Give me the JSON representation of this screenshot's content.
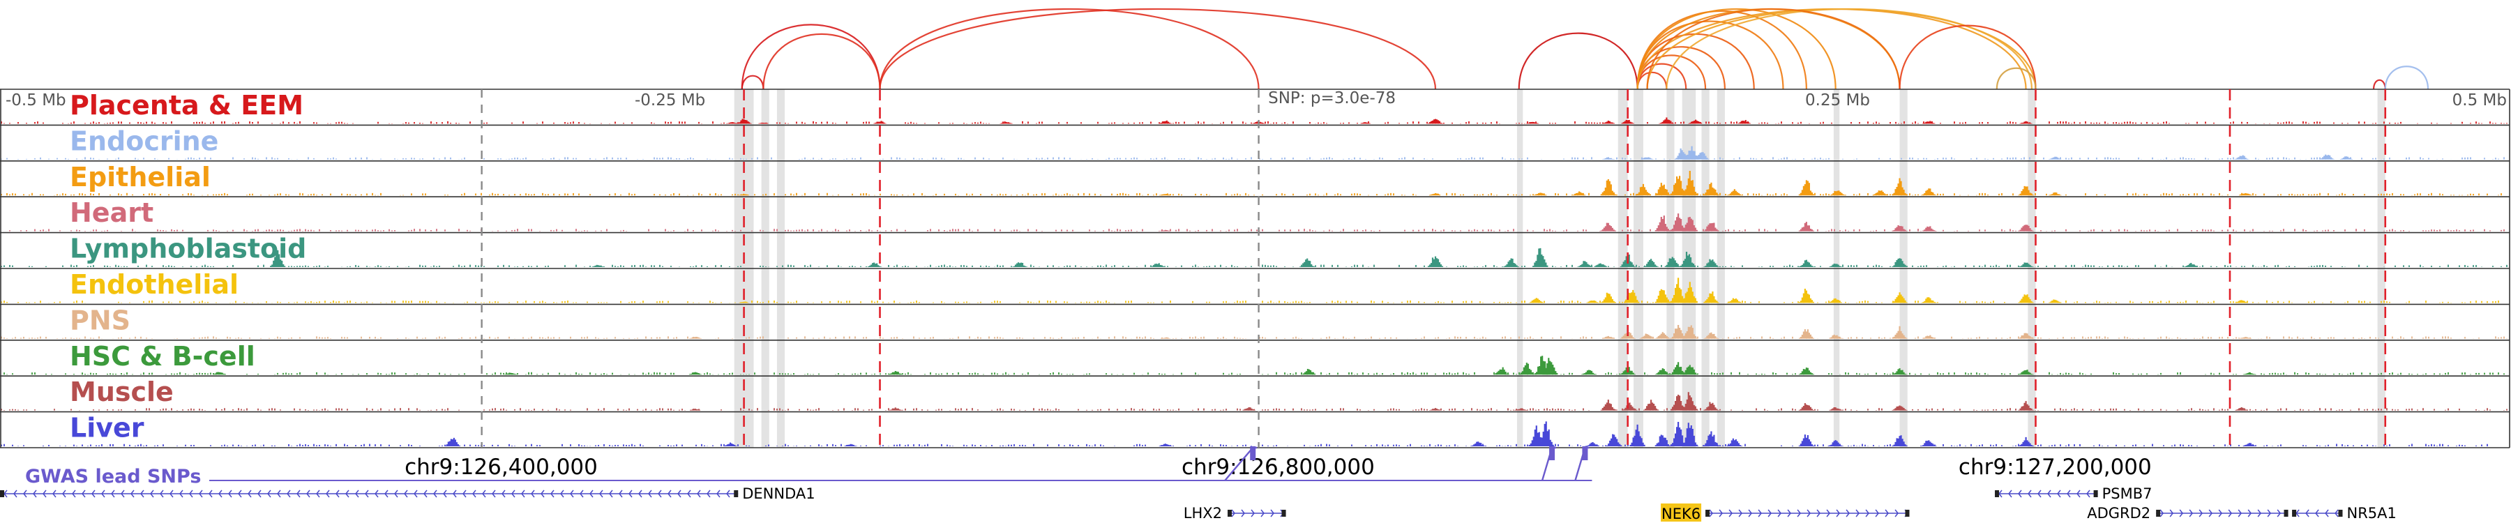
{
  "chart_data": {
    "type": "genome-browser",
    "region": {
      "chrom": "chr9",
      "start": 126142000,
      "end": 127434000,
      "center": 126792000,
      "scale_labels": [
        "-0.5 Mb",
        "-0.25 Mb",
        "0.25 Mb",
        "0.5 Mb"
      ],
      "coordinate_ticks": [
        {
          "pos": 126400000,
          "label": "chr9:126,400,000"
        },
        {
          "pos": 126800000,
          "label": "chr9:126,800,000"
        },
        {
          "pos": 127200000,
          "label": "chr9:127,200,000"
        }
      ]
    },
    "snp_annotation": "SNP: p=3.0e-78",
    "tracks": [
      {
        "name": "Placenta & EEM",
        "color": "#d7191c",
        "peaks": [
          [
            126519000,
            6
          ],
          [
            126525000,
            18
          ],
          [
            126535000,
            5
          ],
          [
            126595000,
            10
          ],
          [
            126660000,
            8
          ],
          [
            126742000,
            12
          ],
          [
            126790000,
            9
          ],
          [
            126845000,
            6
          ],
          [
            126881000,
            22
          ],
          [
            126931000,
            8
          ],
          [
            126970000,
            10
          ],
          [
            126980000,
            14
          ],
          [
            127000000,
            22
          ],
          [
            127015000,
            16
          ],
          [
            127040000,
            14
          ],
          [
            127135000,
            10
          ],
          [
            127185000,
            8
          ]
        ]
      },
      {
        "name": "Endocrine",
        "color": "#9ab8ec",
        "peaks": [
          [
            126970000,
            8
          ],
          [
            126990000,
            10
          ],
          [
            127008000,
            40
          ],
          [
            127013000,
            48
          ],
          [
            127018000,
            30
          ],
          [
            127200000,
            10
          ],
          [
            127296000,
            18
          ],
          [
            127340000,
            20
          ],
          [
            127350000,
            12
          ]
        ]
      },
      {
        "name": "Epithelial",
        "color": "#f39c12",
        "peaks": [
          [
            126525000,
            5
          ],
          [
            126742000,
            6
          ],
          [
            126881000,
            8
          ],
          [
            126935000,
            10
          ],
          [
            126955000,
            14
          ],
          [
            126970000,
            52
          ],
          [
            126988000,
            40
          ],
          [
            126998000,
            50
          ],
          [
            127006000,
            82
          ],
          [
            127012000,
            78
          ],
          [
            127023000,
            45
          ],
          [
            127035000,
            20
          ],
          [
            127072000,
            60
          ],
          [
            127088000,
            22
          ],
          [
            127110000,
            22
          ],
          [
            127120000,
            55
          ],
          [
            127135000,
            24
          ],
          [
            127185000,
            34
          ],
          [
            127200000,
            10
          ],
          [
            127298000,
            10
          ]
        ]
      },
      {
        "name": "Heart",
        "color": "#d16a7a",
        "peaks": [
          [
            126742000,
            5
          ],
          [
            126970000,
            35
          ],
          [
            126998000,
            55
          ],
          [
            127006000,
            65
          ],
          [
            127012000,
            60
          ],
          [
            127023000,
            40
          ],
          [
            127072000,
            32
          ],
          [
            127120000,
            26
          ],
          [
            127135000,
            18
          ],
          [
            127185000,
            28
          ]
        ]
      },
      {
        "name": "Lymphoblastoid",
        "color": "#3b9680",
        "peaks": [
          [
            126285000,
            55
          ],
          [
            126450000,
            8
          ],
          [
            126592000,
            18
          ],
          [
            126667000,
            20
          ],
          [
            126738000,
            16
          ],
          [
            126815000,
            30
          ],
          [
            126881000,
            45
          ],
          [
            126920000,
            30
          ],
          [
            126935000,
            72
          ],
          [
            126958000,
            22
          ],
          [
            126966000,
            16
          ],
          [
            126980000,
            45
          ],
          [
            126992000,
            26
          ],
          [
            127003000,
            48
          ],
          [
            127011000,
            55
          ],
          [
            127023000,
            30
          ],
          [
            127072000,
            25
          ],
          [
            127087000,
            14
          ],
          [
            127120000,
            40
          ],
          [
            127185000,
            18
          ],
          [
            127270000,
            15
          ]
        ]
      },
      {
        "name": "Endothelial",
        "color": "#f4c20d",
        "peaks": [
          [
            126525000,
            5
          ],
          [
            126933000,
            20
          ],
          [
            126962000,
            10
          ],
          [
            126970000,
            38
          ],
          [
            126982000,
            55
          ],
          [
            126998000,
            62
          ],
          [
            127006000,
            80
          ],
          [
            127012000,
            76
          ],
          [
            127023000,
            40
          ],
          [
            127035000,
            20
          ],
          [
            127072000,
            50
          ],
          [
            127087000,
            18
          ],
          [
            127120000,
            40
          ],
          [
            127135000,
            20
          ],
          [
            127185000,
            40
          ],
          [
            127200000,
            12
          ],
          [
            127296000,
            10
          ]
        ]
      },
      {
        "name": "PNS",
        "color": "#e3b48c",
        "peaks": [
          [
            126500000,
            8
          ],
          [
            126742000,
            5
          ],
          [
            126970000,
            10
          ],
          [
            126980000,
            30
          ],
          [
            126990000,
            22
          ],
          [
            126998000,
            28
          ],
          [
            127006000,
            48
          ],
          [
            127012000,
            52
          ],
          [
            127023000,
            26
          ],
          [
            127072000,
            38
          ],
          [
            127087000,
            16
          ],
          [
            127120000,
            40
          ],
          [
            127135000,
            14
          ],
          [
            127185000,
            26
          ],
          [
            127298000,
            8
          ]
        ]
      },
      {
        "name": "HSC & B-cell",
        "color": "#3c9a3c",
        "peaks": [
          [
            126255000,
            12
          ],
          [
            126405000,
            8
          ],
          [
            126500000,
            10
          ],
          [
            126603000,
            14
          ],
          [
            126816000,
            20
          ],
          [
            126915000,
            26
          ],
          [
            126928000,
            40
          ],
          [
            126936000,
            65
          ],
          [
            126940000,
            68
          ],
          [
            126960000,
            18
          ],
          [
            126980000,
            30
          ],
          [
            126998000,
            22
          ],
          [
            127006000,
            42
          ],
          [
            127012000,
            40
          ],
          [
            127072000,
            30
          ],
          [
            127120000,
            22
          ],
          [
            127185000,
            20
          ],
          [
            127300000,
            8
          ]
        ]
      },
      {
        "name": "Muscle",
        "color": "#b54f4f",
        "peaks": [
          [
            126500000,
            6
          ],
          [
            126603000,
            10
          ],
          [
            126785000,
            12
          ],
          [
            126881000,
            8
          ],
          [
            126925000,
            8
          ],
          [
            126970000,
            40
          ],
          [
            126981000,
            28
          ],
          [
            126992000,
            35
          ],
          [
            127006000,
            60
          ],
          [
            127012000,
            65
          ],
          [
            127023000,
            30
          ],
          [
            127072000,
            26
          ],
          [
            127087000,
            12
          ],
          [
            127120000,
            22
          ],
          [
            127185000,
            32
          ],
          [
            127296000,
            10
          ]
        ]
      },
      {
        "name": "Liver",
        "color": "#4848d8",
        "peaks": [
          [
            126375000,
            35
          ],
          [
            126518000,
            12
          ],
          [
            126580000,
            8
          ],
          [
            126742000,
            10
          ],
          [
            126903000,
            18
          ],
          [
            126933000,
            72
          ],
          [
            126938000,
            80
          ],
          [
            126962000,
            14
          ],
          [
            126973000,
            45
          ],
          [
            126985000,
            70
          ],
          [
            126998000,
            50
          ],
          [
            127006000,
            85
          ],
          [
            127012000,
            90
          ],
          [
            127023000,
            55
          ],
          [
            127035000,
            32
          ],
          [
            127072000,
            45
          ],
          [
            127087000,
            20
          ],
          [
            127120000,
            40
          ],
          [
            127135000,
            26
          ],
          [
            127185000,
            30
          ],
          [
            127300000,
            12
          ]
        ]
      }
    ],
    "loops": [
      {
        "start": 126524000,
        "end": 126595000,
        "color": "#d7191c"
      },
      {
        "start": 126524000,
        "end": 126535000,
        "color": "#d7191c"
      },
      {
        "start": 126535000,
        "end": 126595000,
        "color": "#e03020"
      },
      {
        "start": 126595000,
        "end": 126790000,
        "color": "#e03020"
      },
      {
        "start": 126595000,
        "end": 126881000,
        "color": "#e03020"
      },
      {
        "start": 126924000,
        "end": 126985000,
        "color": "#cc1010"
      },
      {
        "start": 126985000,
        "end": 127000000,
        "color": "#e84018"
      },
      {
        "start": 126985000,
        "end": 127010000,
        "color": "#e84018"
      },
      {
        "start": 126985000,
        "end": 127020000,
        "color": "#ec5c10"
      },
      {
        "start": 126985000,
        "end": 127030000,
        "color": "#ec5c10"
      },
      {
        "start": 126985000,
        "end": 127045000,
        "color": "#ec5c10"
      },
      {
        "start": 126985000,
        "end": 127060000,
        "color": "#f07a10"
      },
      {
        "start": 126985000,
        "end": 127072000,
        "color": "#f07a10"
      },
      {
        "start": 126985000,
        "end": 127087000,
        "color": "#f08a10"
      },
      {
        "start": 126985000,
        "end": 127120000,
        "color": "#f08a10"
      },
      {
        "start": 126985000,
        "end": 127185000,
        "color": "#f09a20"
      },
      {
        "start": 126990000,
        "end": 127190000,
        "color": "#f0a020"
      },
      {
        "start": 127000000,
        "end": 127188000,
        "color": "#f0a830"
      },
      {
        "start": 126990000,
        "end": 127120000,
        "color": "#ec6a10"
      },
      {
        "start": 127120000,
        "end": 127190000,
        "color": "#e84018"
      },
      {
        "start": 127170000,
        "end": 127190000,
        "color": "#d4a040"
      },
      {
        "start": 127364000,
        "end": 127370000,
        "color": "#d7191c"
      },
      {
        "start": 127370000,
        "end": 127392000,
        "color": "#9ab8ec"
      }
    ],
    "red_lines": [
      126525000,
      126595000,
      126980000,
      127190000,
      127290000,
      127370000
    ],
    "gray_lines": [
      126390000,
      126790000
    ],
    "highlights": [
      [
        126520000,
        126530000
      ],
      [
        126534000,
        126538000
      ],
      [
        126542000,
        126546000
      ],
      [
        126923000,
        126926000
      ],
      [
        126975000,
        126980000
      ],
      [
        126983000,
        126988000
      ],
      [
        127000000,
        127004000
      ],
      [
        127008000,
        127015000
      ],
      [
        127018000,
        127022000
      ],
      [
        127026000,
        127030000
      ],
      [
        127086000,
        127089000
      ],
      [
        127120000,
        127124000
      ],
      [
        127186000,
        127190000
      ],
      [
        127366000,
        127370000
      ]
    ],
    "gwas_track": {
      "label": "GWAS lead SNPs",
      "color": "#6a5acd",
      "snps": [
        126787000,
        126941000,
        126958000
      ]
    },
    "genes": [
      {
        "name": "DENNDA1",
        "start": 126142000,
        "end": 126522000,
        "strand": "-",
        "row": 1
      },
      {
        "name": "LHX2",
        "start": 126774000,
        "end": 126804000,
        "strand": "+",
        "row": 2
      },
      {
        "name": "NEK6",
        "start": 127020000,
        "end": 127125000,
        "strand": "+",
        "row": 2,
        "highlight": "#f5c518"
      },
      {
        "name": "PSMB7",
        "start": 127169000,
        "end": 127222000,
        "strand": "-",
        "row": 1
      },
      {
        "name": "ADGRD2",
        "start": 127252000,
        "end": 127320000,
        "strand": "+",
        "row": 2
      },
      {
        "name": "NR5A1",
        "start": 127322000,
        "end": 127348000,
        "strand": "-",
        "row": 2
      }
    ]
  }
}
